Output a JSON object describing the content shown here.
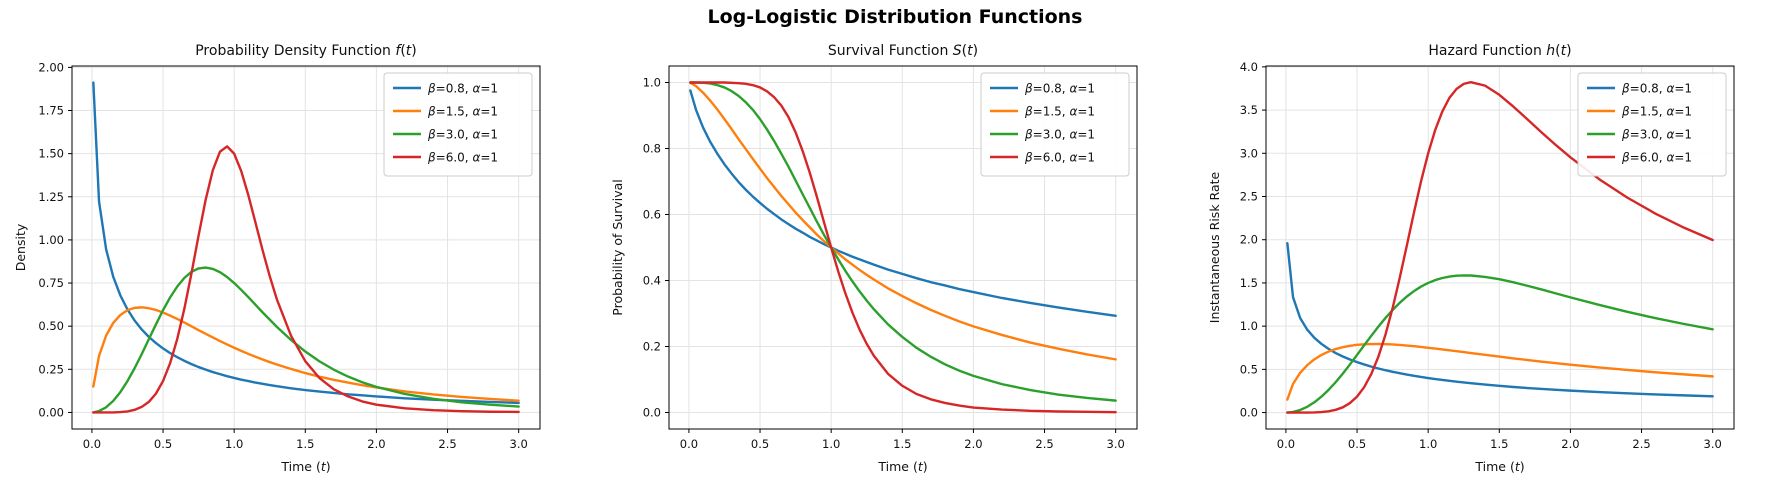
{
  "figure": {
    "title": "Log-Logistic Distribution Functions",
    "background": "#ffffff",
    "axis_color": "#000000",
    "grid_color": "#e3e3e3",
    "legend_border": "#cccccc",
    "legend_background": "#ffffff"
  },
  "chart_data": [
    {
      "id": "pdf",
      "type": "line",
      "title": "Probability Density Function f(t)",
      "title_segments": [
        {
          "t": "Probability Density Function "
        },
        {
          "t": "f",
          "i": true
        },
        {
          "t": "("
        },
        {
          "t": "t",
          "i": true
        },
        {
          "t": ")"
        }
      ],
      "xlabel": "Time (t)",
      "xlabel_segments": [
        {
          "t": "Time ("
        },
        {
          "t": "t",
          "i": true
        },
        {
          "t": ")"
        }
      ],
      "ylabel": "Density",
      "xlim": [
        -0.14,
        3.15
      ],
      "ylim": [
        -0.096,
        2.008
      ],
      "xticks": [
        0.0,
        0.5,
        1.0,
        1.5,
        2.0,
        2.5,
        3.0
      ],
      "xtick_labels": [
        "0.0",
        "0.5",
        "1.0",
        "1.5",
        "2.0",
        "2.5",
        "3.0"
      ],
      "yticks": [
        0.0,
        0.25,
        0.5,
        0.75,
        1.0,
        1.25,
        1.5,
        1.75,
        2.0
      ],
      "ytick_labels": [
        "0.00",
        "0.25",
        "0.50",
        "0.75",
        "1.00",
        "1.25",
        "1.50",
        "1.75",
        "2.00"
      ],
      "grid": true,
      "legend_position": "upper right",
      "x": [
        0.01,
        0.05,
        0.1,
        0.15,
        0.2,
        0.25,
        0.3,
        0.35,
        0.4,
        0.45,
        0.5,
        0.55,
        0.6,
        0.65,
        0.7,
        0.75,
        0.8,
        0.85,
        0.9,
        0.95,
        1.0,
        1.05,
        1.1,
        1.15,
        1.2,
        1.25,
        1.3,
        1.4,
        1.5,
        1.6,
        1.7,
        1.8,
        1.9,
        2.0,
        2.2,
        2.4,
        2.6,
        2.8,
        3.0
      ],
      "series": [
        {
          "name": "β=0.8, α=1",
          "color": "#1f77b4",
          "values": [
            1.912,
            1.223,
            0.945,
            0.786,
            0.678,
            0.597,
            0.533,
            0.481,
            0.438,
            0.402,
            0.371,
            0.344,
            0.32,
            0.299,
            0.28,
            0.263,
            0.248,
            0.234,
            0.222,
            0.21,
            0.2,
            0.19,
            0.182,
            0.173,
            0.166,
            0.159,
            0.152,
            0.14,
            0.13,
            0.121,
            0.113,
            0.105,
            0.099,
            0.093,
            0.082,
            0.074,
            0.067,
            0.061,
            0.055
          ]
        },
        {
          "name": "β=1.5, α=1",
          "color": "#ff7f0e",
          "values": [
            0.15,
            0.328,
            0.446,
            0.519,
            0.565,
            0.593,
            0.606,
            0.609,
            0.604,
            0.594,
            0.579,
            0.561,
            0.542,
            0.521,
            0.499,
            0.477,
            0.456,
            0.435,
            0.414,
            0.394,
            0.375,
            0.357,
            0.339,
            0.323,
            0.307,
            0.292,
            0.278,
            0.252,
            0.228,
            0.207,
            0.189,
            0.173,
            0.158,
            0.145,
            0.122,
            0.104,
            0.09,
            0.078,
            0.068
          ]
        },
        {
          "name": "β=3.0, α=1",
          "color": "#2ca02c",
          "values": [
            0.0,
            0.008,
            0.03,
            0.067,
            0.118,
            0.182,
            0.256,
            0.338,
            0.424,
            0.51,
            0.593,
            0.667,
            0.73,
            0.78,
            0.815,
            0.835,
            0.84,
            0.832,
            0.813,
            0.785,
            0.75,
            0.71,
            0.668,
            0.624,
            0.58,
            0.538,
            0.496,
            0.42,
            0.353,
            0.296,
            0.248,
            0.208,
            0.175,
            0.148,
            0.107,
            0.079,
            0.059,
            0.045,
            0.034
          ]
        },
        {
          "name": "β=6.0, α=1",
          "color": "#d62728",
          "values": [
            0.0,
            0.0,
            0.0,
            0.0,
            0.002,
            0.006,
            0.015,
            0.032,
            0.061,
            0.109,
            0.182,
            0.286,
            0.426,
            0.602,
            0.807,
            1.026,
            1.234,
            1.404,
            1.511,
            1.542,
            1.5,
            1.398,
            1.258,
            1.1,
            0.94,
            0.79,
            0.656,
            0.444,
            0.297,
            0.199,
            0.135,
            0.093,
            0.064,
            0.045,
            0.024,
            0.013,
            0.007,
            0.004,
            0.003
          ]
        }
      ]
    },
    {
      "id": "survival",
      "type": "line",
      "title": "Survival Function S(t)",
      "title_segments": [
        {
          "t": "Survival Function "
        },
        {
          "t": "S",
          "i": true
        },
        {
          "t": "("
        },
        {
          "t": "t",
          "i": true
        },
        {
          "t": ")"
        }
      ],
      "xlabel": "Time (t)",
      "xlabel_segments": [
        {
          "t": "Time ("
        },
        {
          "t": "t",
          "i": true
        },
        {
          "t": ")"
        }
      ],
      "ylabel": "Probability of Survival",
      "xlim": [
        -0.14,
        3.15
      ],
      "ylim": [
        -0.05,
        1.05
      ],
      "xticks": [
        0.0,
        0.5,
        1.0,
        1.5,
        2.0,
        2.5,
        3.0
      ],
      "xtick_labels": [
        "0.0",
        "0.5",
        "1.0",
        "1.5",
        "2.0",
        "2.5",
        "3.0"
      ],
      "yticks": [
        0.0,
        0.2,
        0.4,
        0.6,
        0.8,
        1.0
      ],
      "ytick_labels": [
        "0.0",
        "0.2",
        "0.4",
        "0.6",
        "0.8",
        "1.0"
      ],
      "grid": true,
      "legend_position": "upper right",
      "x": [
        0.01,
        0.05,
        0.1,
        0.15,
        0.2,
        0.25,
        0.3,
        0.35,
        0.4,
        0.45,
        0.5,
        0.55,
        0.6,
        0.65,
        0.7,
        0.75,
        0.8,
        0.85,
        0.9,
        0.95,
        1.0,
        1.05,
        1.1,
        1.15,
        1.2,
        1.25,
        1.3,
        1.4,
        1.5,
        1.6,
        1.7,
        1.8,
        1.9,
        2.0,
        2.2,
        2.4,
        2.6,
        2.8,
        3.0
      ],
      "series": [
        {
          "name": "β=0.8, α=1",
          "color": "#1f77b4",
          "values": [
            0.976,
            0.917,
            0.863,
            0.82,
            0.784,
            0.752,
            0.724,
            0.698,
            0.675,
            0.654,
            0.635,
            0.617,
            0.601,
            0.585,
            0.571,
            0.557,
            0.545,
            0.532,
            0.521,
            0.51,
            0.5,
            0.49,
            0.481,
            0.472,
            0.464,
            0.456,
            0.448,
            0.433,
            0.42,
            0.407,
            0.395,
            0.385,
            0.374,
            0.365,
            0.347,
            0.332,
            0.318,
            0.305,
            0.293
          ]
        },
        {
          "name": "β=1.5, α=1",
          "color": "#ff7f0e",
          "values": [
            0.999,
            0.989,
            0.969,
            0.945,
            0.918,
            0.889,
            0.859,
            0.828,
            0.798,
            0.768,
            0.739,
            0.71,
            0.683,
            0.656,
            0.631,
            0.606,
            0.583,
            0.561,
            0.539,
            0.519,
            0.5,
            0.482,
            0.464,
            0.448,
            0.432,
            0.417,
            0.403,
            0.376,
            0.353,
            0.331,
            0.311,
            0.293,
            0.276,
            0.261,
            0.235,
            0.212,
            0.193,
            0.176,
            0.161
          ]
        },
        {
          "name": "β=3.0, α=1",
          "color": "#2ca02c",
          "values": [
            1.0,
            1.0,
            0.999,
            0.997,
            0.992,
            0.985,
            0.974,
            0.959,
            0.94,
            0.917,
            0.889,
            0.857,
            0.822,
            0.784,
            0.745,
            0.703,
            0.661,
            0.62,
            0.578,
            0.538,
            0.5,
            0.464,
            0.429,
            0.397,
            0.367,
            0.339,
            0.313,
            0.267,
            0.229,
            0.196,
            0.169,
            0.146,
            0.127,
            0.111,
            0.086,
            0.068,
            0.054,
            0.044,
            0.036
          ]
        },
        {
          "name": "β=6.0, α=1",
          "color": "#d62728",
          "values": [
            1.0,
            1.0,
            1.0,
            1.0,
            1.0,
            1.0,
            0.999,
            0.998,
            0.996,
            0.992,
            0.985,
            0.973,
            0.955,
            0.93,
            0.895,
            0.849,
            0.792,
            0.726,
            0.653,
            0.576,
            0.5,
            0.427,
            0.361,
            0.302,
            0.251,
            0.208,
            0.172,
            0.117,
            0.081,
            0.056,
            0.04,
            0.029,
            0.021,
            0.015,
            0.009,
            0.005,
            0.003,
            0.002,
            0.001
          ]
        }
      ]
    },
    {
      "id": "hazard",
      "type": "line",
      "title": "Hazard Function h(t)",
      "title_segments": [
        {
          "t": "Hazard Function "
        },
        {
          "t": "h",
          "i": true
        },
        {
          "t": "("
        },
        {
          "t": "t",
          "i": true
        },
        {
          "t": ")"
        }
      ],
      "xlabel": "Time (t)",
      "xlabel_segments": [
        {
          "t": "Time ("
        },
        {
          "t": "t",
          "i": true
        },
        {
          "t": ")"
        }
      ],
      "ylabel": "Instantaneous Risk Rate",
      "xlim": [
        -0.14,
        3.15
      ],
      "ylim": [
        -0.19,
        4.01
      ],
      "xticks": [
        0.0,
        0.5,
        1.0,
        1.5,
        2.0,
        2.5,
        3.0
      ],
      "xtick_labels": [
        "0.0",
        "0.5",
        "1.0",
        "1.5",
        "2.0",
        "2.5",
        "3.0"
      ],
      "yticks": [
        0.0,
        0.5,
        1.0,
        1.5,
        2.0,
        2.5,
        3.0,
        3.5,
        4.0
      ],
      "ytick_labels": [
        "0.0",
        "0.5",
        "1.0",
        "1.5",
        "2.0",
        "2.5",
        "3.0",
        "3.5",
        "4.0"
      ],
      "grid": true,
      "legend_position": "upper right",
      "x": [
        0.01,
        0.05,
        0.1,
        0.15,
        0.2,
        0.25,
        0.3,
        0.35,
        0.4,
        0.45,
        0.5,
        0.55,
        0.6,
        0.65,
        0.7,
        0.75,
        0.8,
        0.85,
        0.9,
        0.95,
        1.0,
        1.05,
        1.1,
        1.15,
        1.2,
        1.25,
        1.3,
        1.4,
        1.5,
        1.6,
        1.7,
        1.8,
        1.9,
        2.0,
        2.2,
        2.4,
        2.6,
        2.8,
        3.0
      ],
      "series": [
        {
          "name": "β=0.8, α=1",
          "color": "#1f77b4",
          "values": [
            1.96,
            1.335,
            1.094,
            0.959,
            0.865,
            0.794,
            0.737,
            0.689,
            0.649,
            0.614,
            0.584,
            0.557,
            0.532,
            0.51,
            0.49,
            0.472,
            0.456,
            0.44,
            0.426,
            0.412,
            0.4,
            0.388,
            0.378,
            0.367,
            0.358,
            0.349,
            0.34,
            0.324,
            0.31,
            0.296,
            0.284,
            0.274,
            0.263,
            0.254,
            0.237,
            0.223,
            0.21,
            0.199,
            0.188
          ]
        },
        {
          "name": "β=1.5, α=1",
          "color": "#ff7f0e",
          "values": [
            0.15,
            0.332,
            0.46,
            0.549,
            0.616,
            0.667,
            0.706,
            0.735,
            0.757,
            0.773,
            0.784,
            0.79,
            0.793,
            0.794,
            0.791,
            0.788,
            0.782,
            0.775,
            0.768,
            0.759,
            0.75,
            0.74,
            0.731,
            0.72,
            0.71,
            0.7,
            0.689,
            0.668,
            0.648,
            0.627,
            0.608,
            0.589,
            0.571,
            0.554,
            0.522,
            0.493,
            0.466,
            0.442,
            0.419
          ]
        },
        {
          "name": "β=3.0, α=1",
          "color": "#2ca02c",
          "values": [
            0.0,
            0.008,
            0.03,
            0.067,
            0.119,
            0.185,
            0.263,
            0.352,
            0.451,
            0.557,
            0.667,
            0.778,
            0.888,
            0.994,
            1.095,
            1.187,
            1.27,
            1.343,
            1.405,
            1.458,
            1.5,
            1.533,
            1.557,
            1.574,
            1.584,
            1.587,
            1.586,
            1.57,
            1.543,
            1.507,
            1.466,
            1.423,
            1.378,
            1.333,
            1.247,
            1.166,
            1.092,
            1.025,
            0.964
          ]
        },
        {
          "name": "β=6.0, α=1",
          "color": "#d62728",
          "values": [
            0.0,
            0.0,
            0.0,
            0.0,
            0.002,
            0.006,
            0.015,
            0.032,
            0.061,
            0.11,
            0.185,
            0.294,
            0.446,
            0.647,
            0.902,
            1.209,
            1.558,
            1.933,
            2.314,
            2.676,
            3.0,
            3.272,
            3.486,
            3.643,
            3.745,
            3.803,
            3.823,
            3.783,
            3.677,
            3.539,
            3.389,
            3.238,
            3.092,
            2.954,
            2.703,
            2.487,
            2.3,
            2.138,
            1.997
          ]
        }
      ]
    }
  ]
}
